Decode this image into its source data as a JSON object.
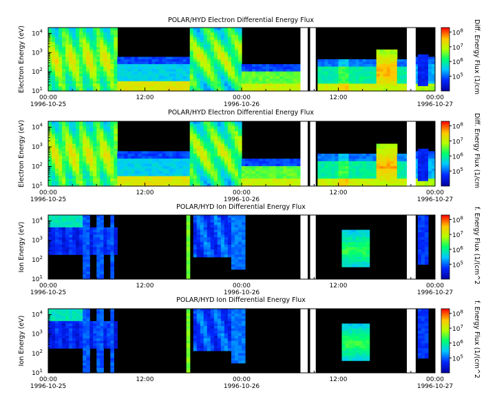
{
  "chart_data": [
    {
      "type": "heatmap",
      "title": "POLAR/HYD  Electron Differential Energy Flux",
      "ylabel": "Electron Energy (eV)",
      "colorbar_label": "Diff. Energy Flux (1/cm",
      "y_scale": "log",
      "ylim": [
        10,
        20000
      ],
      "y_ticks": [
        "10",
        "10",
        "10",
        "10"
      ],
      "y_tick_exponents": [
        "1",
        "2",
        "3",
        "4"
      ],
      "x_ticks": [
        "00:00",
        "12:00",
        "00:00",
        "12:00",
        "00:00"
      ],
      "x_dates": [
        "1996-10-25",
        "1996-10-26",
        "1996-10-27"
      ],
      "colorbar_ticks": [
        "10",
        "10",
        "10",
        "10"
      ],
      "colorbar_exponents": [
        "5",
        "6",
        "7",
        "8"
      ],
      "colorbar_range": [
        10000,
        200000000
      ],
      "data_gaps_hours": [
        [
          31.3,
          32.2
        ],
        [
          32.5,
          33.2
        ],
        [
          44.5,
          45.6
        ]
      ]
    },
    {
      "type": "heatmap",
      "title": "POLAR/HYD  Electron Differential Energy Flux",
      "ylabel": "Electron Energy (eV)",
      "colorbar_label": "Diff. Energy Flux (1/cm",
      "y_scale": "log",
      "ylim": [
        10,
        20000
      ],
      "y_ticks": [
        "10",
        "10",
        "10",
        "10"
      ],
      "y_tick_exponents": [
        "1",
        "2",
        "3",
        "4"
      ],
      "x_ticks": [
        "00:00",
        "12:00",
        "00:00",
        "12:00",
        "00:00"
      ],
      "x_dates": [
        "1996-10-25",
        "1996-10-26",
        "1996-10-27"
      ],
      "colorbar_ticks": [
        "10",
        "10",
        "10",
        "10"
      ],
      "colorbar_exponents": [
        "5",
        "6",
        "7",
        "8"
      ],
      "colorbar_range": [
        10000,
        200000000
      ],
      "data_gaps_hours": [
        [
          31.3,
          32.2
        ],
        [
          32.5,
          33.2
        ],
        [
          44.5,
          45.6
        ]
      ]
    },
    {
      "type": "heatmap",
      "title": "POLAR/HYD  Ion Differential Energy Flux",
      "ylabel": "Ion Energy (eV)",
      "colorbar_label": "f. Energy Flux (1/(cm^2",
      "y_scale": "log",
      "ylim": [
        10,
        20000
      ],
      "y_ticks": [
        "10",
        "10",
        "10",
        "10"
      ],
      "y_tick_exponents": [
        "1",
        "2",
        "3",
        "4"
      ],
      "x_ticks": [
        "00:00",
        "12:00",
        "00:00",
        "12:00",
        "00:00"
      ],
      "x_dates": [
        "1996-10-25",
        "1996-10-26",
        "1996-10-27"
      ],
      "colorbar_ticks": [
        "10",
        "10",
        "10",
        "10"
      ],
      "colorbar_exponents": [
        "5",
        "6",
        "7",
        "8"
      ],
      "colorbar_range": [
        10000,
        200000000
      ],
      "data_gaps_hours": [
        [
          31.3,
          32.2
        ],
        [
          32.5,
          33.2
        ],
        [
          44.5,
          45.6
        ]
      ]
    },
    {
      "type": "heatmap",
      "title": "POLAR/HYD  Ion Differential Energy Flux",
      "ylabel": "Ion Energy (eV)",
      "colorbar_label": "f. Energy Flux (1/(cm^2",
      "y_scale": "log",
      "ylim": [
        10,
        20000
      ],
      "y_ticks": [
        "10",
        "10",
        "10",
        "10"
      ],
      "y_tick_exponents": [
        "1",
        "2",
        "3",
        "4"
      ],
      "x_ticks": [
        "00:00",
        "12:00",
        "00:00",
        "12:00",
        "00:00"
      ],
      "x_dates": [
        "1996-10-25",
        "1996-10-26",
        "1996-10-27"
      ],
      "colorbar_ticks": [
        "10",
        "10",
        "10",
        "10"
      ],
      "colorbar_exponents": [
        "5",
        "6",
        "7",
        "8"
      ],
      "colorbar_range": [
        10000,
        200000000
      ],
      "data_gaps_hours": [
        [
          31.3,
          32.2
        ],
        [
          32.5,
          33.2
        ],
        [
          44.5,
          45.6
        ]
      ]
    }
  ]
}
